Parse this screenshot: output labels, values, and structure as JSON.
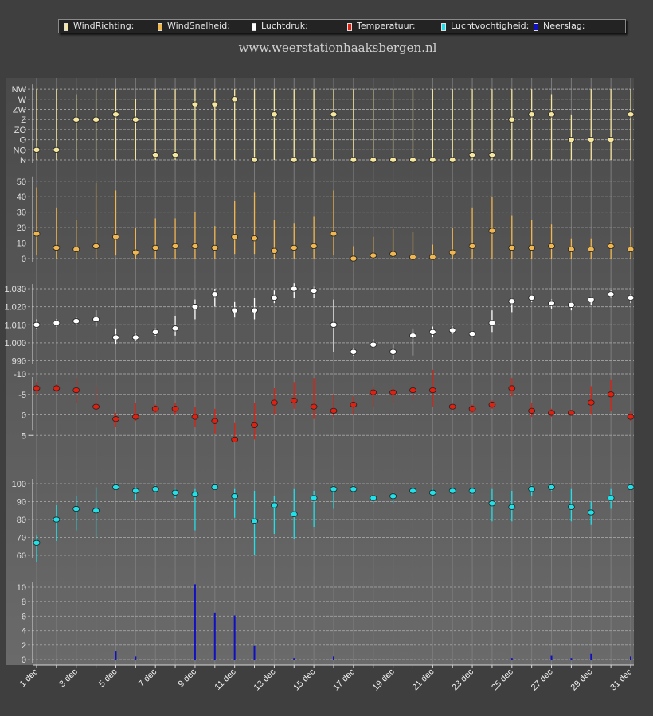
{
  "site_title": "www.weerstationhaaksbergen.nl",
  "legend": [
    {
      "label": "WindRichting:",
      "color": "#f5e6a0"
    },
    {
      "label": "WindSnelheid:",
      "color": "#f0b650"
    },
    {
      "label": "Luchtdruk:",
      "color": "#ffffff"
    },
    {
      "label": "Temperatuur:",
      "color": "#e02010"
    },
    {
      "label": "Luchtvochtigheid:",
      "color": "#20e0e8"
    },
    {
      "label": "Neerslag:",
      "color": "#1010c0"
    }
  ],
  "chart_data": {
    "type": "scatter",
    "x": [
      "1 dec",
      "2 dec",
      "3 dec",
      "4 dec",
      "5 dec",
      "6 dec",
      "7 dec",
      "8 dec",
      "9 dec",
      "10 dec",
      "11 dec",
      "12 dec",
      "13 dec",
      "14 dec",
      "15 dec",
      "16 dec",
      "17 dec",
      "18 dec",
      "19 dec",
      "20 dec",
      "21 dec",
      "22 dec",
      "23 dec",
      "24 dec",
      "25 dec",
      "26 dec",
      "27 dec",
      "28 dec",
      "29 dec",
      "30 dec",
      "31 dec"
    ],
    "x_tick_labels": [
      "1 dec",
      "3 dec",
      "5 dec",
      "7 dec",
      "9 dec",
      "11 dec",
      "13 dec",
      "15 dec",
      "17 dec",
      "19 dec",
      "21 dec",
      "23 dec",
      "25 dec",
      "27 dec",
      "29 dec",
      "31 dec"
    ],
    "grid": true,
    "legend_position": "top",
    "panels": [
      {
        "name": "WindRichting",
        "color": "#f5e6a0",
        "ticks": [
          "N",
          "NO",
          "O",
          "ZO",
          "Z",
          "ZW",
          "W",
          "NW"
        ],
        "ylim": [
          0,
          7
        ],
        "values": [
          1,
          1,
          4,
          4,
          4.5,
          4,
          0.5,
          0.5,
          5.5,
          5.5,
          6,
          0,
          4.5,
          0,
          0,
          4.5,
          0,
          0,
          0,
          0,
          0,
          0,
          0.5,
          0.5,
          4,
          4.5,
          4.5,
          2,
          2,
          2,
          4.5
        ],
        "ranges": [
          [
            0,
            7
          ],
          [
            0,
            7
          ],
          [
            0,
            6.5
          ],
          [
            0,
            7
          ],
          [
            0,
            7
          ],
          [
            0,
            6
          ],
          [
            0,
            7
          ],
          [
            0,
            7
          ],
          [
            0,
            7
          ],
          [
            0,
            7
          ],
          [
            0,
            7
          ],
          [
            0,
            7
          ],
          [
            0,
            7
          ],
          [
            0,
            7
          ],
          [
            0,
            7
          ],
          [
            0,
            7
          ],
          [
            0,
            7
          ],
          [
            0,
            7
          ],
          [
            0,
            7
          ],
          [
            0,
            7
          ],
          [
            0,
            7
          ],
          [
            0,
            7
          ],
          [
            0,
            7
          ],
          [
            0,
            7
          ],
          [
            0,
            7
          ],
          [
            0,
            7
          ],
          [
            0,
            6.5
          ],
          [
            0,
            4.5
          ],
          [
            0,
            7
          ],
          [
            0,
            7
          ],
          [
            0,
            7
          ]
        ]
      },
      {
        "name": "WindSnelheid",
        "color": "#f0b650",
        "ticks": [
          0,
          10,
          20,
          30,
          40,
          50
        ],
        "ylim": [
          0,
          55
        ],
        "values": [
          16,
          7,
          6,
          8,
          14,
          4,
          7,
          8,
          8,
          7,
          14,
          13,
          5,
          7,
          8,
          16,
          0,
          2,
          3,
          1,
          1,
          4,
          8,
          18,
          7,
          7,
          8,
          6,
          6,
          8,
          6
        ],
        "ranges": [
          [
            2,
            46
          ],
          [
            0,
            33
          ],
          [
            0,
            25
          ],
          [
            0,
            49
          ],
          [
            2,
            44
          ],
          [
            0,
            20
          ],
          [
            0,
            26
          ],
          [
            0,
            26
          ],
          [
            0,
            30
          ],
          [
            0,
            21
          ],
          [
            3,
            37
          ],
          [
            3,
            43
          ],
          [
            0,
            25
          ],
          [
            0,
            23
          ],
          [
            0,
            27
          ],
          [
            2,
            44
          ],
          [
            0,
            8
          ],
          [
            0,
            14
          ],
          [
            0,
            19
          ],
          [
            0,
            17
          ],
          [
            0,
            9
          ],
          [
            0,
            20
          ],
          [
            0,
            33
          ],
          [
            0,
            40
          ],
          [
            0,
            28
          ],
          [
            0,
            25
          ],
          [
            0,
            22
          ],
          [
            0,
            13
          ],
          [
            0,
            13
          ],
          [
            0,
            11
          ],
          [
            0,
            20
          ]
        ]
      },
      {
        "name": "Luchtdruk",
        "color": "#ffffff",
        "ticks": [
          990,
          1000,
          1010,
          1020,
          1030
        ],
        "tick_labels": [
          "990",
          "1.000",
          "1.010",
          "1.020",
          "1.030"
        ],
        "ylim": [
          985,
          1037
        ],
        "values": [
          1010,
          1011,
          1012,
          1013,
          1003,
          1003,
          1006,
          1008,
          1020,
          1027,
          1018,
          1018,
          1025,
          1030,
          1029,
          1010,
          995,
          999,
          995,
          1004,
          1006,
          1007,
          1005,
          1011,
          1023,
          1025,
          1022,
          1021,
          1024,
          1027,
          1025
        ],
        "ranges": [
          [
            1008,
            1013
          ],
          [
            1009,
            1013
          ],
          [
            1010,
            1014
          ],
          [
            1009,
            1018
          ],
          [
            999,
            1008
          ],
          [
            1001,
            1005
          ],
          [
            1004,
            1008
          ],
          [
            1004,
            1015
          ],
          [
            1013,
            1024
          ],
          [
            1020,
            1030
          ],
          [
            1014,
            1023
          ],
          [
            1013,
            1025
          ],
          [
            1022,
            1029
          ],
          [
            1025,
            1033
          ],
          [
            1025,
            1031
          ],
          [
            995,
            1024
          ],
          [
            993,
            997
          ],
          [
            997,
            1002
          ],
          [
            991,
            999
          ],
          [
            993,
            1008
          ],
          [
            1003,
            1009
          ],
          [
            1005,
            1009
          ],
          [
            1003,
            1006
          ],
          [
            1006,
            1018
          ],
          [
            1017,
            1025
          ],
          [
            1023,
            1026
          ],
          [
            1019,
            1024
          ],
          [
            1018,
            1022
          ],
          [
            1021,
            1025
          ],
          [
            1025,
            1029
          ],
          [
            1022,
            1027
          ]
        ]
      },
      {
        "name": "Temperatuur",
        "color": "#e02010",
        "ticks": [
          -10,
          -5,
          0,
          5
        ],
        "ylim": [
          -13,
          7
        ],
        "values": [
          -6.5,
          -6.5,
          -6,
          -2,
          1,
          0.5,
          -1.5,
          -1.5,
          0.5,
          1.5,
          6,
          2.5,
          -3,
          -3.5,
          -2,
          -1,
          -2.5,
          -5.5,
          -5.5,
          -6,
          -6,
          -2,
          -1.5,
          -2.5,
          -6.5,
          -1,
          -0.5,
          -0.5,
          -3,
          -5,
          0.5
        ],
        "ranges": [
          [
            -8,
            -5
          ],
          [
            -7.5,
            -5.5
          ],
          [
            -9,
            -3
          ],
          [
            -7,
            -1
          ],
          [
            -0.5,
            3
          ],
          [
            -3,
            1.5
          ],
          [
            -2.5,
            -0.5
          ],
          [
            -3,
            0
          ],
          [
            -2,
            3
          ],
          [
            -1.5,
            4.5
          ],
          [
            2,
            6.5
          ],
          [
            -3,
            6
          ],
          [
            -6.5,
            0
          ],
          [
            -8,
            -1.5
          ],
          [
            -9,
            1
          ],
          [
            -5,
            0.5
          ],
          [
            -4.5,
            0
          ],
          [
            -7,
            -2
          ],
          [
            -7,
            -3
          ],
          [
            -8,
            -3.5
          ],
          [
            -11,
            -2
          ],
          [
            -2.5,
            -1.5
          ],
          [
            -2.5,
            -0.5
          ],
          [
            -3.5,
            -1.5
          ],
          [
            -9,
            -4.5
          ],
          [
            -3,
            0.5
          ],
          [
            -1.5,
            0.5
          ],
          [
            -1,
            0
          ],
          [
            -7,
            0
          ],
          [
            -8.5,
            -1
          ],
          [
            -1,
            1.5
          ]
        ]
      },
      {
        "name": "Luchtvochtigheid",
        "color": "#20e0e8",
        "ticks": [
          60,
          70,
          80,
          90,
          100
        ],
        "ylim": [
          53,
          103
        ],
        "values": [
          67,
          80,
          86,
          85,
          98,
          96,
          97,
          95,
          94,
          98,
          93,
          79,
          88,
          83,
          92,
          97,
          97,
          92,
          93,
          96,
          95,
          96,
          96,
          89,
          87,
          97,
          98,
          87,
          84,
          92,
          98
        ],
        "ranges": [
          [
            56,
            71
          ],
          [
            68,
            88
          ],
          [
            74,
            93
          ],
          [
            70,
            98
          ],
          [
            97,
            99
          ],
          [
            91,
            98
          ],
          [
            95,
            99
          ],
          [
            92,
            97
          ],
          [
            74,
            97
          ],
          [
            97,
            99
          ],
          [
            81,
            97
          ],
          [
            60,
            96
          ],
          [
            72,
            93
          ],
          [
            69,
            97
          ],
          [
            76,
            96
          ],
          [
            86,
            99
          ],
          [
            96,
            99
          ],
          [
            89,
            94
          ],
          [
            89,
            95
          ],
          [
            94,
            98
          ],
          [
            93,
            97
          ],
          [
            95,
            97
          ],
          [
            94,
            97
          ],
          [
            79,
            97
          ],
          [
            79,
            96
          ],
          [
            93,
            99
          ],
          [
            96,
            99
          ],
          [
            79,
            97
          ],
          [
            77,
            90
          ],
          [
            86,
            97
          ],
          [
            97,
            99
          ]
        ]
      },
      {
        "name": "Neerslag",
        "color": "#1010c0",
        "ticks": [
          0,
          2,
          4,
          6,
          8,
          10
        ],
        "ylim": [
          -1,
          11
        ],
        "values": [
          0,
          0,
          0,
          0,
          1.2,
          0.4,
          0,
          0,
          10.4,
          6.5,
          6.1,
          1.9,
          0,
          0.2,
          0,
          0.4,
          0,
          0,
          0,
          0,
          0,
          0,
          0,
          0,
          0.2,
          0,
          0.6,
          0.2,
          0.8,
          0,
          0.4
        ]
      }
    ]
  }
}
